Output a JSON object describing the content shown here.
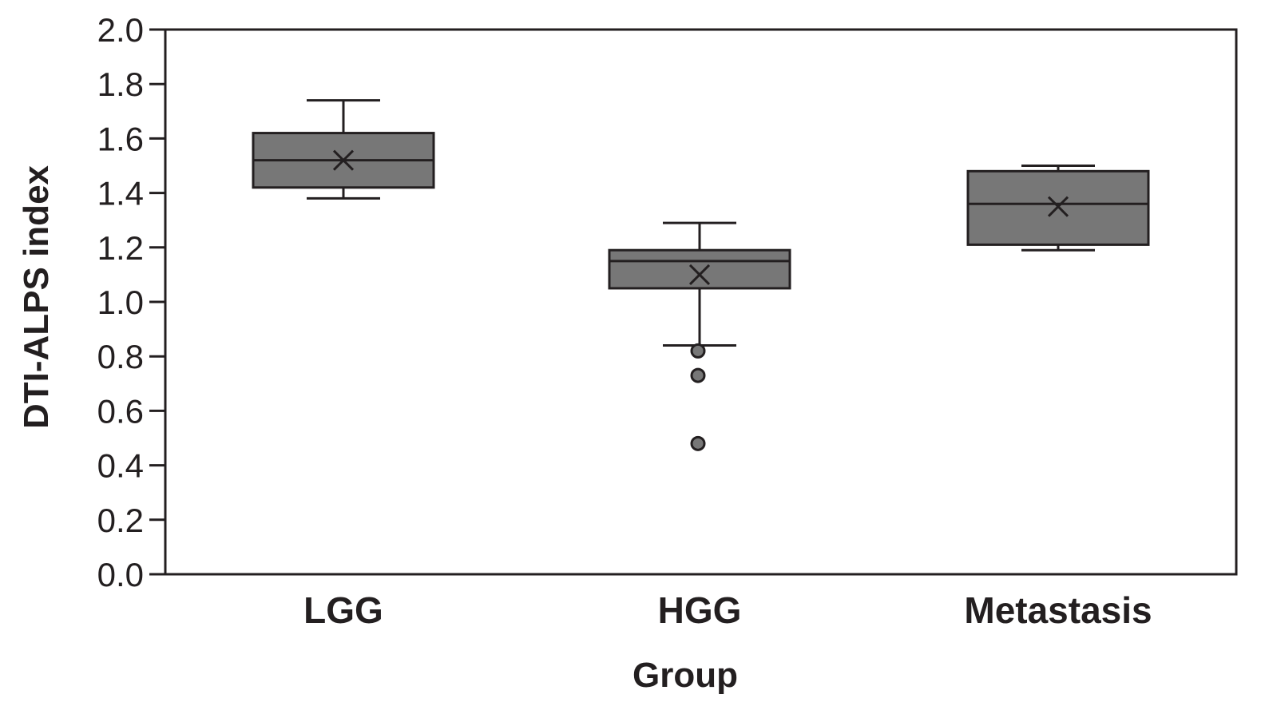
{
  "chart_data": {
    "type": "box",
    "xlabel": "Group",
    "ylabel": "DTI-ALPS index",
    "ylim": [
      0.0,
      2.0
    ],
    "yticks": [
      "0.0",
      "0.2",
      "0.4",
      "0.6",
      "0.8",
      "1.0",
      "1.2",
      "1.4",
      "1.6",
      "1.8",
      "2.0"
    ],
    "grid": false,
    "categories": [
      "LGG",
      "HGG",
      "Metastasis"
    ],
    "boxes": [
      {
        "category": "LGG",
        "whisker_low": 1.38,
        "q1": 1.42,
        "median": 1.52,
        "q3": 1.62,
        "whisker_high": 1.74,
        "mean": 1.52,
        "outliers": []
      },
      {
        "category": "HGG",
        "whisker_low": 0.84,
        "q1": 1.05,
        "median": 1.15,
        "q3": 1.19,
        "whisker_high": 1.29,
        "mean": 1.1,
        "outliers": [
          0.82,
          0.73,
          0.48
        ]
      },
      {
        "category": "Metastasis",
        "whisker_low": 1.19,
        "q1": 1.21,
        "median": 1.36,
        "q3": 1.48,
        "whisker_high": 1.5,
        "mean": 1.35,
        "outliers": []
      }
    ],
    "colors": {
      "box_fill": "#777777",
      "stroke": "#231f20",
      "outlier_fill": "#777777"
    }
  }
}
